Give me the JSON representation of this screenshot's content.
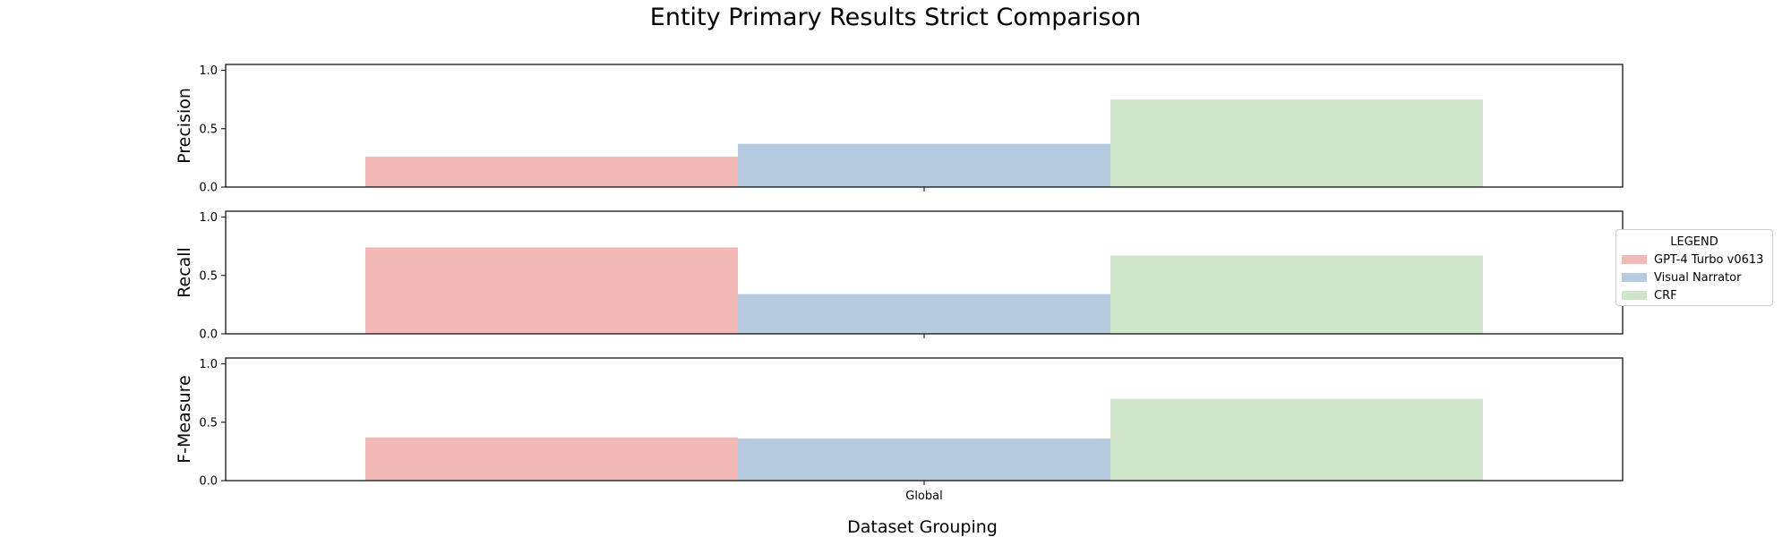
{
  "chart_data": {
    "type": "bar",
    "title": "Entity Primary Results Strict Comparison",
    "xlabel": "Dataset Grouping",
    "categories": [
      "Global"
    ],
    "ylim": [
      0,
      1.05
    ],
    "yticks": [
      "0.0",
      "0.5",
      "1.0"
    ],
    "panels": [
      {
        "ylabel": "Precision",
        "values": [
          0.26,
          0.37,
          0.75
        ]
      },
      {
        "ylabel": "Recall",
        "values": [
          0.74,
          0.34,
          0.67
        ]
      },
      {
        "ylabel": "F-Measure",
        "values": [
          0.37,
          0.36,
          0.7
        ]
      }
    ],
    "series": [
      {
        "name": "GPT-4 Turbo v0613",
        "color": "#f2b9b7"
      },
      {
        "name": "Visual Narrator",
        "color": "#b6cbdf"
      },
      {
        "name": "CRF",
        "color": "#d0e6ca"
      }
    ],
    "legend": {
      "title": "LEGEND",
      "placement": "right"
    },
    "grid": false
  }
}
